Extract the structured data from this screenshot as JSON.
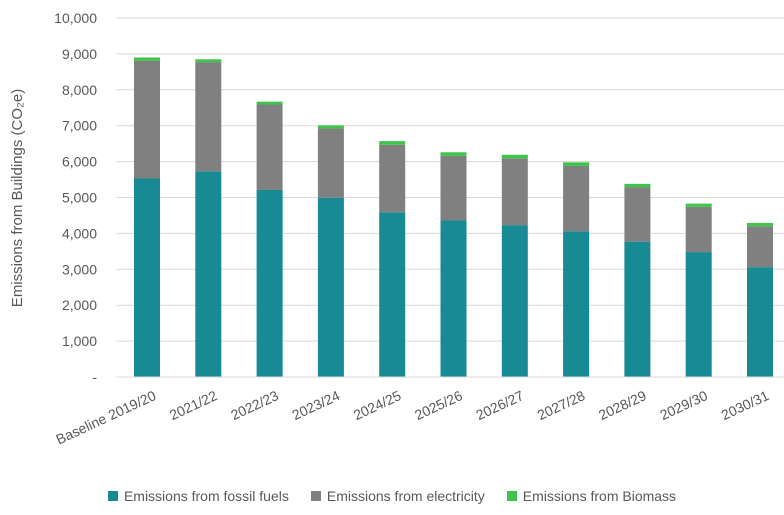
{
  "chart_data": {
    "type": "bar",
    "stacked": true,
    "title": "",
    "xlabel": "",
    "ylabel": "Emissions from Buildings (CO₂e)",
    "ylim": [
      0,
      10000
    ],
    "yticks": [
      "-",
      "1,000",
      "2,000",
      "3,000",
      "4,000",
      "5,000",
      "6,000",
      "7,000",
      "8,000",
      "9,000",
      "10,000"
    ],
    "grid": true,
    "legend_position": "bottom",
    "categories": [
      "Baseline 2019/20",
      "2021/22",
      "2022/23",
      "2023/24",
      "2024/25",
      "2025/26",
      "2026/27",
      "2027/28",
      "2028/29",
      "2029/30",
      "2030/31"
    ],
    "series": [
      {
        "name": "Emissions from fossil fuels",
        "color": "#178a94",
        "values": [
          5530,
          5730,
          5210,
          4990,
          4590,
          4360,
          4230,
          4060,
          3770,
          3480,
          3060
        ]
      },
      {
        "name": "Emissions from electricity",
        "color": "#808080",
        "values": [
          3280,
          3040,
          2380,
          1930,
          1880,
          1800,
          1860,
          1820,
          1520,
          1260,
          1140
        ]
      },
      {
        "name": "Emissions from Biomass",
        "color": "#3ec449",
        "values": [
          90,
          80,
          80,
          90,
          100,
          100,
          100,
          100,
          90,
          90,
          90
        ]
      }
    ]
  }
}
